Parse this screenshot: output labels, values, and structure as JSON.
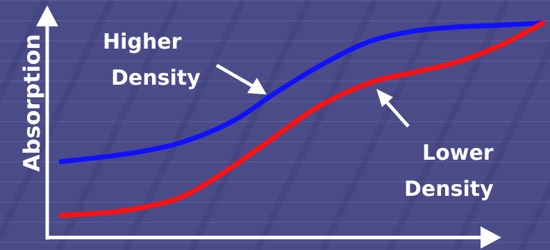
{
  "colors": {
    "background": "#4a4b87",
    "grid_light": "#5f60a0",
    "grid_dark": "#3c3d76",
    "axis": "#ffffff",
    "text": "#ffffff",
    "higher_density_line": "#1010ff",
    "lower_density_line": "#ff1010"
  },
  "chart_data": {
    "type": "line",
    "title": "",
    "xlabel": "",
    "ylabel": "Absorption",
    "grid": false,
    "legend": "none",
    "annotations": [
      {
        "text_lines": [
          "Higher",
          "Density"
        ],
        "points_to_series": "Higher Density"
      },
      {
        "text_lines": [
          "Lower",
          "Density"
        ],
        "points_to_series": "Lower Density"
      }
    ],
    "series": [
      {
        "name": "Higher Density",
        "color": "#1010ff",
        "x": [
          0,
          8,
          17,
          26,
          36,
          45,
          55,
          64,
          73,
          82,
          92,
          100
        ],
        "y": [
          32,
          34,
          37,
          42,
          52,
          66,
          80,
          90,
          95,
          97,
          98,
          99
        ]
      },
      {
        "name": "Lower Density",
        "color": "#ff1010",
        "x": [
          0,
          8,
          15,
          24,
          32,
          42,
          53,
          64,
          73,
          82,
          91,
          100
        ],
        "y": [
          6,
          7,
          9,
          14,
          24,
          40,
          58,
          70,
          75,
          80,
          88,
          99
        ]
      }
    ]
  }
}
